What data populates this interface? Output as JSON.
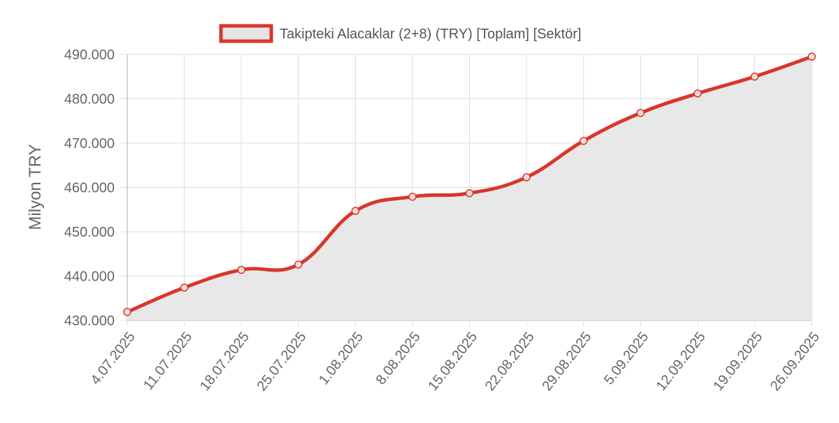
{
  "chart_data": {
    "type": "area",
    "title": "",
    "xlabel": "",
    "ylabel": "Milyon TRY",
    "categories": [
      "4.07.2025",
      "11.07.2025",
      "18.07.2025",
      "25.07.2025",
      "1.08.2025",
      "8.08.2025",
      "15.08.2025",
      "22.08.2025",
      "29.08.2025",
      "5.09.2025",
      "12.09.2025",
      "19.09.2025",
      "26.09.2025"
    ],
    "series": [
      {
        "name": "Takipteki Alacaklar (2+8) (TRY) [Toplam] [Sektör]",
        "values": [
          431900,
          437400,
          441400,
          442600,
          454700,
          457900,
          458700,
          462300,
          470500,
          476800,
          481200,
          485000,
          489500
        ],
        "line_color": "#d9362b",
        "fill_color": "#e5e5e5"
      }
    ],
    "ylim": [
      430000,
      490000
    ],
    "y_ticks": [
      "490.000",
      "480.000",
      "470.000",
      "460.000",
      "450.000",
      "440.000",
      "430.000"
    ],
    "y_tick_values": [
      490000,
      480000,
      470000,
      460000,
      450000,
      440000,
      430000
    ],
    "legend_position": "top",
    "grid": true
  }
}
